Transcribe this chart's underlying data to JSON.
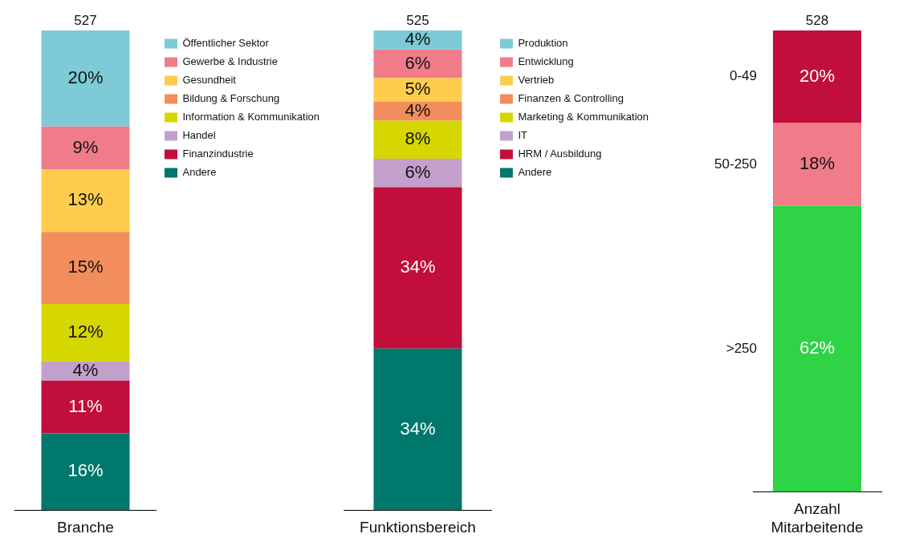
{
  "chart_data": [
    {
      "type": "bar",
      "stacked": true,
      "categories": [
        "Branche"
      ],
      "legend": "right",
      "annotations": [
        "527"
      ],
      "series": [
        {
          "name": "Andere",
          "color": "#00776b",
          "values": [
            16
          ],
          "value_labels": [
            "16%"
          ]
        },
        {
          "name": "Finanzindustrie",
          "color": "#c20e3a",
          "values": [
            11
          ],
          "value_labels": [
            "11%"
          ]
        },
        {
          "name": "Handel",
          "color": "#c3a0cc",
          "values": [
            4
          ],
          "value_labels": [
            "4%"
          ]
        },
        {
          "name": "Information & Kommunikation",
          "color": "#d6d600",
          "values": [
            12
          ],
          "value_labels": [
            "12%"
          ]
        },
        {
          "name": "Bildung & Forschung",
          "color": "#f28e5b",
          "values": [
            15
          ],
          "value_labels": [
            "15%"
          ]
        },
        {
          "name": "Gesundheit",
          "color": "#ffcc4d",
          "values": [
            13
          ],
          "value_labels": [
            "13%"
          ]
        },
        {
          "name": "Gewerbe & Industrie",
          "color": "#f07c8a",
          "values": [
            9
          ],
          "value_labels": [
            "9%"
          ]
        },
        {
          "name": "Öffentlicher Sektor",
          "color": "#7ccbd6",
          "values": [
            20
          ],
          "value_labels": [
            "20%"
          ]
        }
      ]
    },
    {
      "type": "bar",
      "stacked": true,
      "categories": [
        "Funktionsbereich"
      ],
      "legend": "right",
      "annotations": [
        "525"
      ],
      "series": [
        {
          "name": "Andere",
          "color": "#00776b",
          "values": [
            34
          ],
          "value_labels": [
            "34%"
          ]
        },
        {
          "name": "HRM / Ausbildung",
          "color": "#c20e3a",
          "values": [
            34
          ],
          "value_labels": [
            "34%"
          ]
        },
        {
          "name": "IT",
          "color": "#c3a0cc",
          "values": [
            6
          ],
          "value_labels": [
            "6%"
          ]
        },
        {
          "name": "Marketing & Kommunikation",
          "color": "#d6d600",
          "values": [
            8
          ],
          "value_labels": [
            "8%"
          ]
        },
        {
          "name": "Finanzen & Controlling",
          "color": "#f28e5b",
          "values": [
            4
          ],
          "value_labels": [
            "4%"
          ]
        },
        {
          "name": "Vertrieb",
          "color": "#ffcc4d",
          "values": [
            5
          ],
          "value_labels": [
            "5%"
          ]
        },
        {
          "name": "Entwicklung",
          "color": "#f07c8a",
          "values": [
            6
          ],
          "value_labels": [
            "6%"
          ]
        },
        {
          "name": "Produktion",
          "color": "#7ccbd6",
          "values": [
            4
          ],
          "value_labels": [
            "4%"
          ]
        }
      ]
    },
    {
      "type": "bar",
      "stacked": true,
      "categories": [
        "Anzahl Mitarbeitende"
      ],
      "annotations": [
        "528"
      ],
      "series": [
        {
          "name": ">250",
          "color": "#2ed446",
          "values": [
            62
          ],
          "value_labels": [
            "62%"
          ]
        },
        {
          "name": "50-250",
          "color": "#f07c8a",
          "values": [
            18
          ],
          "value_labels": [
            "18%"
          ]
        },
        {
          "name": "0-49",
          "color": "#c20e3a",
          "values": [
            20
          ],
          "value_labels": [
            "20%"
          ]
        }
      ]
    }
  ]
}
